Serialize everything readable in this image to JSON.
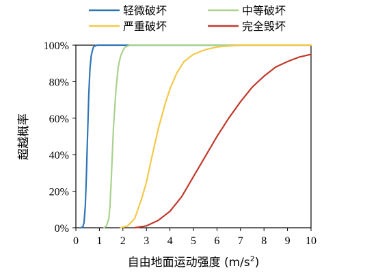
{
  "chart_data": {
    "type": "line",
    "title": "",
    "xlabel_main": "自由地面运动强度 (m/s",
    "xlabel_sup": "2",
    "xlabel_close": ")",
    "ylabel": "超越概率",
    "xlim": [
      0,
      10
    ],
    "ylim": [
      0,
      1
    ],
    "x_ticks": [
      "0",
      "1",
      "2",
      "3",
      "4",
      "5",
      "6",
      "7",
      "8",
      "9",
      "10"
    ],
    "y_ticks": [
      "0%",
      "20%",
      "40%",
      "60%",
      "80%",
      "100%"
    ],
    "grid": false,
    "legend_position": "top",
    "series": [
      {
        "name": "轻微破坏",
        "color": "#2E75B6",
        "x": [
          0.2,
          0.3,
          0.35,
          0.4,
          0.45,
          0.5,
          0.55,
          0.6,
          0.65,
          0.7,
          0.75,
          0.8,
          0.9,
          1.0,
          1.2,
          10
        ],
        "y": [
          0,
          0.005,
          0.03,
          0.12,
          0.3,
          0.52,
          0.73,
          0.87,
          0.94,
          0.97,
          0.99,
          0.995,
          1.0,
          1.0,
          1.0,
          1.0
        ]
      },
      {
        "name": "中等破坏",
        "color": "#A9D18E",
        "x": [
          1.2,
          1.3,
          1.4,
          1.45,
          1.5,
          1.55,
          1.6,
          1.7,
          1.8,
          1.9,
          2.0,
          2.1,
          2.3,
          2.6,
          10
        ],
        "y": [
          0,
          0.01,
          0.05,
          0.12,
          0.25,
          0.4,
          0.55,
          0.75,
          0.88,
          0.94,
          0.97,
          0.99,
          1.0,
          1.0,
          1.0
        ]
      },
      {
        "name": "严重破坏",
        "color": "#F4C84A",
        "x": [
          1.9,
          2.2,
          2.5,
          2.8,
          3.0,
          3.2,
          3.5,
          3.8,
          4.0,
          4.3,
          4.6,
          5.0,
          5.5,
          6.0,
          6.5,
          7.0,
          8.0,
          10
        ],
        "y": [
          0,
          0.01,
          0.05,
          0.16,
          0.25,
          0.37,
          0.54,
          0.68,
          0.76,
          0.85,
          0.91,
          0.95,
          0.975,
          0.99,
          0.995,
          1.0,
          1.0,
          1.0
        ]
      },
      {
        "name": "完全毁坏",
        "color": "#C0392B",
        "x": [
          2.5,
          3.0,
          3.5,
          4.0,
          4.5,
          5.0,
          5.5,
          6.0,
          6.5,
          7.0,
          7.5,
          8.0,
          8.5,
          9.0,
          9.5,
          10.0
        ],
        "y": [
          0,
          0.01,
          0.04,
          0.09,
          0.17,
          0.28,
          0.39,
          0.5,
          0.6,
          0.69,
          0.77,
          0.83,
          0.88,
          0.91,
          0.935,
          0.95
        ]
      }
    ]
  }
}
